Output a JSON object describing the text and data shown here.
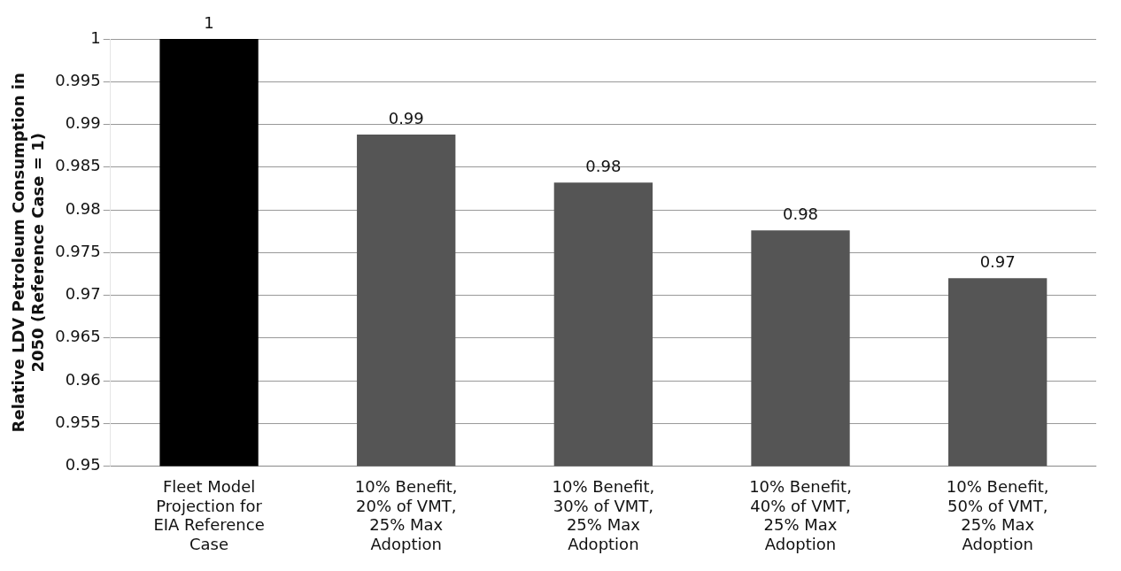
{
  "chart_data": {
    "type": "bar",
    "ylabel": "Relative LDV Petroleum Consumption in 2050 (Reference Case = 1)",
    "categories": [
      "Fleet Model Projection for EIA Reference Case",
      "10% Benefit, 20% of VMT, 25% Max Adoption",
      "10% Benefit, 30% of VMT, 25% Max Adoption",
      "10% Benefit, 40% of VMT, 25% Max Adoption",
      "10% Benefit, 50% of VMT, 25% Max Adoption"
    ],
    "values": [
      1,
      0.9888,
      0.9832,
      0.9776,
      0.972
    ],
    "value_labels": [
      "1",
      "0.99",
      "0.98",
      "0.98",
      "0.97"
    ],
    "colors": [
      "#000000",
      "#555555",
      "#555555",
      "#555555",
      "#555555"
    ],
    "ylim": [
      0.95,
      1
    ],
    "yticks": [
      0.95,
      0.955,
      0.96,
      0.965,
      0.97,
      0.975,
      0.98,
      0.985,
      0.99,
      0.995,
      1
    ],
    "grid": "y",
    "legend": false
  }
}
